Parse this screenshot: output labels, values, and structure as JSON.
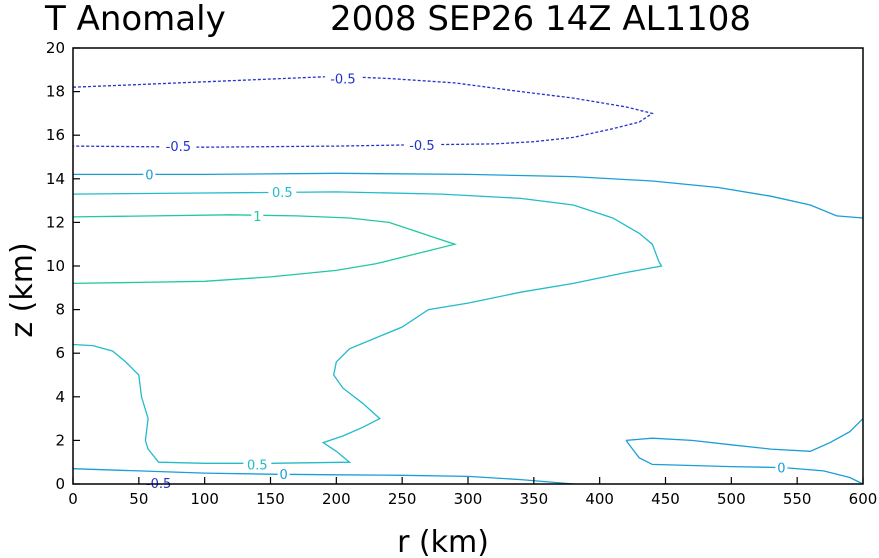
{
  "chart_data": {
    "type": "contour",
    "title_left": "T Anomaly",
    "title_right": "2008 SEP26 14Z  AL1108",
    "xlabel": "r (km)",
    "ylabel": "z (km)",
    "xlim": [
      0,
      600
    ],
    "ylim": [
      0,
      20
    ],
    "xticks": [
      "0",
      "50",
      "100",
      "150",
      "200",
      "250",
      "300",
      "350",
      "400",
      "450",
      "500",
      "550",
      "600"
    ],
    "yticks": [
      "0",
      "2",
      "4",
      "6",
      "8",
      "10",
      "12",
      "14",
      "16",
      "18",
      "20"
    ],
    "colors": {
      "neg": "#2233cc",
      "zero": "#1a9ed6",
      "pos05": "#22bbcc",
      "pos1": "#22c8a0",
      "axis": "#000000"
    },
    "contours": [
      {
        "name": "neg-0.5-closed",
        "level": "-0.5",
        "color_key": "neg",
        "dashed": true,
        "closed": false,
        "points": [
          [
            0,
            18.2
          ],
          [
            40,
            18.3
          ],
          [
            80,
            18.4
          ],
          [
            120,
            18.5
          ],
          [
            160,
            18.6
          ],
          [
            200,
            18.7
          ],
          [
            240,
            18.6
          ],
          [
            290,
            18.4
          ],
          [
            340,
            18.0
          ],
          [
            380,
            17.7
          ],
          [
            420,
            17.3
          ],
          [
            440,
            17.0
          ],
          [
            430,
            16.6
          ],
          [
            410,
            16.3
          ],
          [
            380,
            15.9
          ],
          [
            350,
            15.7
          ],
          [
            320,
            15.6
          ],
          [
            250,
            15.55
          ],
          [
            200,
            15.5
          ],
          [
            100,
            15.45
          ],
          [
            0,
            15.5
          ]
        ]
      },
      {
        "name": "zero-upper",
        "level": "0",
        "color_key": "zero",
        "dashed": false,
        "closed": false,
        "points": [
          [
            0,
            14.2
          ],
          [
            100,
            14.2
          ],
          [
            200,
            14.25
          ],
          [
            300,
            14.2
          ],
          [
            380,
            14.1
          ],
          [
            440,
            13.9
          ],
          [
            490,
            13.6
          ],
          [
            530,
            13.2
          ],
          [
            560,
            12.8
          ],
          [
            580,
            12.3
          ],
          [
            600,
            12.2
          ]
        ]
      },
      {
        "name": "pos-0.5-upper",
        "level": "0.5",
        "color_key": "pos05",
        "dashed": false,
        "closed": false,
        "points": [
          [
            0,
            13.3
          ],
          [
            100,
            13.35
          ],
          [
            200,
            13.4
          ],
          [
            280,
            13.3
          ],
          [
            340,
            13.1
          ],
          [
            380,
            12.8
          ],
          [
            410,
            12.2
          ],
          [
            430,
            11.5
          ],
          [
            440,
            11
          ],
          [
            445,
            10.2
          ],
          [
            447,
            10.0
          ],
          [
            420,
            9.7
          ],
          [
            380,
            9.2
          ],
          [
            340,
            8.8
          ],
          [
            300,
            8.3
          ],
          [
            270,
            8.0
          ],
          [
            250,
            7.2
          ],
          [
            230,
            6.7
          ],
          [
            210,
            6.2
          ],
          [
            200,
            5.6
          ],
          [
            198,
            5.0
          ],
          [
            205,
            4.4
          ],
          [
            220,
            3.7
          ],
          [
            233,
            3.0
          ],
          [
            220,
            2.6
          ],
          [
            205,
            2.2
          ],
          [
            190,
            1.9
          ],
          [
            200,
            1.5
          ],
          [
            210,
            1.0
          ],
          [
            150,
            0.95
          ],
          [
            100,
            0.95
          ],
          [
            65,
            1.0
          ],
          [
            57,
            1.6
          ],
          [
            55,
            2.0
          ],
          [
            57,
            3.0
          ],
          [
            52,
            4.0
          ],
          [
            50,
            5.0
          ],
          [
            40,
            5.6
          ],
          [
            30,
            6.1
          ],
          [
            15,
            6.35
          ],
          [
            0,
            6.4
          ]
        ]
      },
      {
        "name": "pos-1-closed",
        "level": "1",
        "color_key": "pos1",
        "dashed": false,
        "closed": false,
        "points": [
          [
            0,
            12.25
          ],
          [
            60,
            12.3
          ],
          [
            120,
            12.35
          ],
          [
            170,
            12.3
          ],
          [
            210,
            12.2
          ],
          [
            240,
            12.0
          ],
          [
            260,
            11.6
          ],
          [
            275,
            11.3
          ],
          [
            290,
            11.0
          ],
          [
            270,
            10.7
          ],
          [
            250,
            10.4
          ],
          [
            230,
            10.1
          ],
          [
            200,
            9.8
          ],
          [
            150,
            9.5
          ],
          [
            100,
            9.3
          ],
          [
            50,
            9.25
          ],
          [
            0,
            9.2
          ]
        ]
      },
      {
        "name": "zero-bottom-left",
        "level": "0",
        "color_key": "zero",
        "dashed": false,
        "closed": false,
        "points": [
          [
            0,
            0.7
          ],
          [
            50,
            0.6
          ],
          [
            100,
            0.5
          ],
          [
            150,
            0.45
          ],
          [
            200,
            0.42
          ],
          [
            250,
            0.4
          ],
          [
            300,
            0.35
          ],
          [
            340,
            0.2
          ],
          [
            370,
            0.05
          ],
          [
            380,
            0
          ]
        ]
      },
      {
        "name": "zero-bottom-right",
        "level": "0",
        "color_key": "zero",
        "dashed": false,
        "closed": false,
        "points": [
          [
            420,
            2.0
          ],
          [
            440,
            2.1
          ],
          [
            470,
            2.0
          ],
          [
            500,
            1.8
          ],
          [
            530,
            1.6
          ],
          [
            560,
            1.5
          ],
          [
            575,
            1.9
          ],
          [
            590,
            2.4
          ],
          [
            600,
            3.0
          ]
        ]
      },
      {
        "name": "zero-bottom-right-lower",
        "level": "0",
        "color_key": "zero",
        "dashed": false,
        "closed": false,
        "points": [
          [
            420,
            2.0
          ],
          [
            425,
            1.6
          ],
          [
            430,
            1.2
          ],
          [
            440,
            0.9
          ],
          [
            470,
            0.85
          ],
          [
            500,
            0.8
          ],
          [
            540,
            0.75
          ],
          [
            570,
            0.6
          ],
          [
            590,
            0.3
          ],
          [
            600,
            0
          ]
        ]
      }
    ],
    "contour_labels": [
      {
        "text": "-0.5",
        "x": 205,
        "y": 18.6,
        "color_key": "neg"
      },
      {
        "text": "-0.5",
        "x": 80,
        "y": 15.5,
        "color_key": "neg"
      },
      {
        "text": "-0.5",
        "x": 265,
        "y": 15.55,
        "color_key": "neg"
      },
      {
        "text": "0",
        "x": 58,
        "y": 14.2,
        "color_key": "zero"
      },
      {
        "text": "0.5",
        "x": 159,
        "y": 13.4,
        "color_key": "pos05"
      },
      {
        "text": "1",
        "x": 140,
        "y": 12.3,
        "color_key": "pos1"
      },
      {
        "text": "0.5",
        "x": 140,
        "y": 0.9,
        "color_key": "pos05"
      },
      {
        "text": "0",
        "x": 160,
        "y": 0.45,
        "color_key": "zero"
      },
      {
        "text": "-0.5",
        "x": 65,
        "y": 0.05,
        "color_key": "neg"
      },
      {
        "text": "0",
        "x": 538,
        "y": 0.75,
        "color_key": "zero"
      }
    ]
  }
}
